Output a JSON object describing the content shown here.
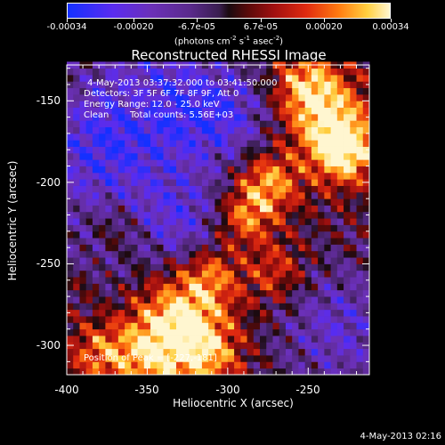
{
  "colorbar": {
    "ticks": [
      "-0.00034",
      "-0.00020",
      "-6.7e-05",
      "6.7e-05",
      "0.00020",
      "0.00034"
    ],
    "tick_values": [
      -0.00034,
      -0.0002,
      -6.7e-05,
      6.7e-05,
      0.0002,
      0.00034
    ],
    "unit_prefix": "(photons cm",
    "unit_exp1": "-2",
    "unit_mid1": " s",
    "unit_exp2": "-1",
    "unit_mid2": " asec",
    "unit_exp3": "-2",
    "unit_suffix": ")",
    "range": [
      -0.00034,
      0.00034
    ]
  },
  "colors": {
    "low": "#1430ff",
    "mid": "#1a0a10",
    "high": "#fff6d0"
  },
  "chart_data": {
    "type": "heatmap",
    "title": "Reconstructed RHESSI Image",
    "xlabel": "Heliocentric X (arcsec)",
    "ylabel": "Heliocentric Y (arcsec)",
    "xlim": [
      -400,
      -212
    ],
    "ylim": [
      -318,
      -128
    ],
    "x_ticks": [
      "-400",
      "-350",
      "-300",
      "-250"
    ],
    "x_tick_values": [
      -400,
      -350,
      -300,
      -250
    ],
    "y_ticks": [
      "-150",
      "-200",
      "-250",
      "-300"
    ],
    "y_tick_values": [
      -150,
      -200,
      -250,
      -300
    ],
    "peak": [
      -227,
      -181
    ],
    "annotations": {
      "time_range": "4-May-2013 03:37:32.000 to 03:41:50.000",
      "detectors": "Detectors: 3F 5F 6F 7F 8F 9F, Att 0",
      "energy": "Energy Range: 12.0 - 25.0 keV",
      "method": "Clean",
      "counts": "Total counts: 5.56E+03",
      "peak_label": "Position of Peak = [-227,-181]"
    }
  },
  "footer": {
    "timestamp": "4-May-2013 02:16"
  }
}
